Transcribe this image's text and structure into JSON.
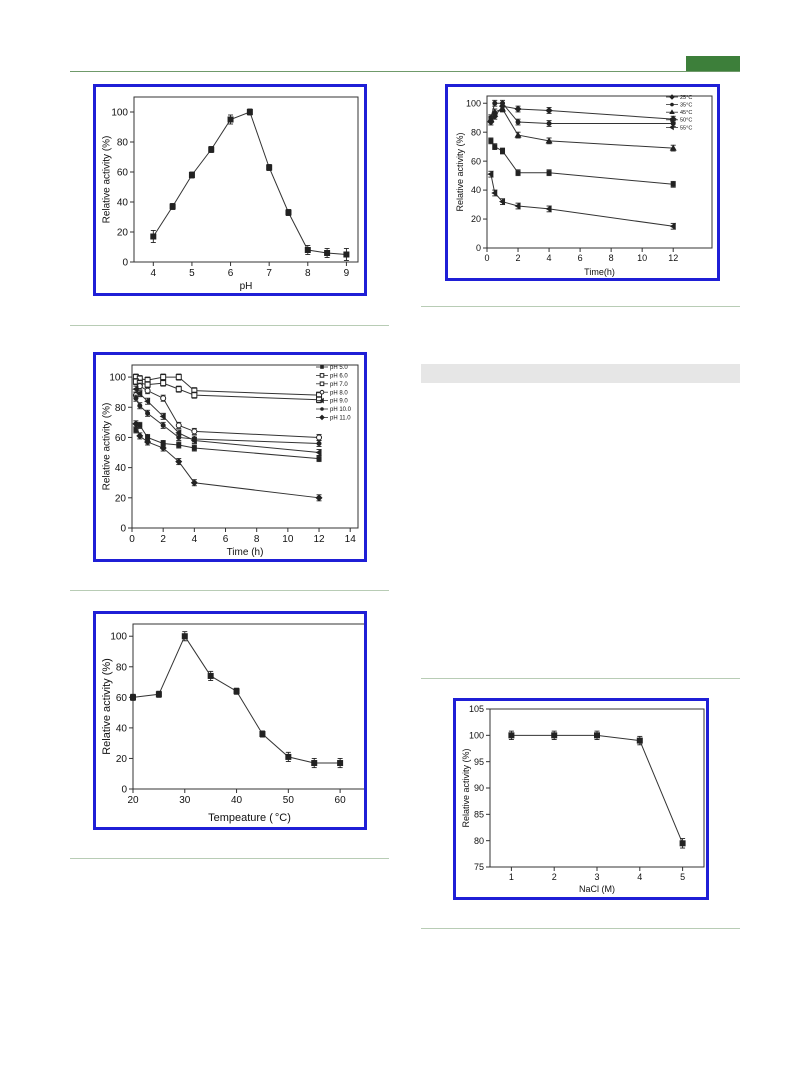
{
  "page": {
    "accent_color": "#3d7f3a",
    "panel_border_color": "#1f1fd6",
    "rule_color": "#b8ccb5"
  },
  "chart_data": [
    {
      "id": "ph_activity",
      "type": "line",
      "xlabel": "pH",
      "ylabel": "Relative activity (%)",
      "xlim": [
        3.5,
        9.3
      ],
      "ylim": [
        0,
        110
      ],
      "xticks": [
        4,
        5,
        6,
        7,
        8,
        9
      ],
      "yticks": [
        0,
        20,
        40,
        60,
        80,
        100
      ],
      "grid": false,
      "series": [
        {
          "marker": "square",
          "x": [
            4.0,
            4.5,
            5.0,
            5.5,
            6.0,
            6.5,
            7.0,
            7.5,
            8.0,
            8.5,
            9.0
          ],
          "y": [
            17,
            37,
            58,
            75,
            95,
            100,
            63,
            33,
            8,
            6,
            5
          ],
          "err": [
            4,
            2,
            2,
            2,
            3,
            2,
            2,
            2,
            3,
            3,
            4
          ]
        }
      ]
    },
    {
      "id": "ph_stability",
      "type": "line",
      "xlabel": "Time (h)",
      "ylabel": "Relative activity (%)",
      "xlim": [
        0,
        14.5
      ],
      "ylim": [
        0,
        108
      ],
      "xticks": [
        0,
        2,
        4,
        6,
        8,
        10,
        12,
        14
      ],
      "yticks": [
        0,
        20,
        40,
        60,
        80,
        100
      ],
      "grid": false,
      "legend_position": "top-right",
      "series": [
        {
          "name": "pH 5.0",
          "marker": "square",
          "x": [
            0.25,
            0.5,
            1,
            2,
            3,
            4,
            12
          ],
          "y": [
            65,
            68,
            60,
            56,
            55,
            53,
            46
          ],
          "err": [
            2,
            2,
            2,
            2,
            2,
            2,
            2
          ]
        },
        {
          "name": "pH 6.0",
          "marker": "open-square",
          "x": [
            0.25,
            0.5,
            1,
            2,
            3,
            4,
            12
          ],
          "y": [
            100,
            99,
            98,
            100,
            100,
            91,
            88
          ],
          "err": [
            2,
            2,
            2,
            2,
            2,
            2,
            2
          ]
        },
        {
          "name": "pH 7.0",
          "marker": "open-square",
          "x": [
            0.25,
            0.5,
            1,
            2,
            3,
            4,
            12
          ],
          "y": [
            97,
            96,
            95,
            96,
            92,
            88,
            85
          ],
          "err": [
            2,
            2,
            2,
            2,
            2,
            2,
            2
          ]
        },
        {
          "name": "pH 8.0",
          "marker": "open-circle",
          "x": [
            0.25,
            0.5,
            1,
            2,
            3,
            4,
            12
          ],
          "y": [
            88,
            94,
            91,
            86,
            68,
            64,
            60
          ],
          "err": [
            2,
            2,
            2,
            2,
            2,
            2,
            2
          ]
        },
        {
          "name": "pH 9.0",
          "marker": "triangle-left",
          "x": [
            0.25,
            0.5,
            1,
            2,
            3,
            4,
            12
          ],
          "y": [
            92,
            89,
            84,
            74,
            63,
            58,
            50
          ],
          "err": [
            2,
            2,
            2,
            2,
            2,
            2,
            2
          ]
        },
        {
          "name": "pH 10.0",
          "marker": "circle",
          "x": [
            0.25,
            0.5,
            1,
            2,
            3,
            4,
            12
          ],
          "y": [
            86,
            81,
            76,
            68,
            60,
            59,
            56
          ],
          "err": [
            2,
            2,
            2,
            2,
            2,
            2,
            2
          ]
        },
        {
          "name": "pH 11.0",
          "marker": "diamond",
          "x": [
            0.25,
            0.5,
            1,
            2,
            3,
            4,
            12
          ],
          "y": [
            69,
            61,
            57,
            53,
            44,
            30,
            20
          ],
          "err": [
            2,
            2,
            2,
            2,
            2,
            2,
            2
          ]
        }
      ]
    },
    {
      "id": "temperature_activity",
      "type": "line",
      "xlabel": "Tempeature (",
      "xlabel_unit": "°C",
      "xlabel_close": ")",
      "ylabel": "Relative activity (%)",
      "xlim": [
        20,
        65
      ],
      "ylim": [
        0,
        108
      ],
      "xticks": [
        20,
        30,
        40,
        50,
        60
      ],
      "yticks": [
        0,
        20,
        40,
        60,
        80,
        100
      ],
      "grid": false,
      "series": [
        {
          "marker": "square",
          "x": [
            20,
            25,
            30,
            35,
            40,
            45,
            50,
            55,
            60
          ],
          "y": [
            60,
            62,
            100,
            74,
            64,
            36,
            21,
            17,
            17
          ],
          "err": [
            2,
            2,
            3,
            3,
            2,
            2,
            3,
            3,
            3
          ]
        }
      ]
    },
    {
      "id": "temperature_stability",
      "type": "line",
      "xlabel": "Time(h)",
      "ylabel": "Relative activity (%)",
      "xlim": [
        0,
        14.5
      ],
      "ylim": [
        0,
        105
      ],
      "xticks": [
        0,
        2,
        4,
        6,
        8,
        10,
        12
      ],
      "yticks": [
        0,
        20,
        40,
        60,
        80,
        100
      ],
      "grid": false,
      "legend_position": "top-right",
      "series": [
        {
          "name": "25°C",
          "marker": "diamond",
          "x": [
            0.25,
            0.5,
            1,
            2,
            4,
            12
          ],
          "y": [
            87,
            91,
            98,
            96,
            95,
            89
          ],
          "err": [
            2,
            2,
            2,
            2,
            2,
            2
          ]
        },
        {
          "name": "35°C",
          "marker": "circle",
          "x": [
            0.25,
            0.5,
            1,
            2,
            4,
            12
          ],
          "y": [
            90,
            100,
            100,
            87,
            86,
            86
          ],
          "err": [
            2,
            2,
            2,
            2,
            2,
            2
          ]
        },
        {
          "name": "45°C",
          "marker": "triangle-up",
          "x": [
            0.25,
            0.5,
            1,
            2,
            4,
            12
          ],
          "y": [
            89,
            94,
            96,
            78,
            74,
            69
          ],
          "err": [
            2,
            2,
            2,
            2,
            2,
            2
          ]
        },
        {
          "name": "50°C",
          "marker": "square",
          "x": [
            0.25,
            0.5,
            1,
            2,
            4,
            12
          ],
          "y": [
            74,
            70,
            67,
            52,
            52,
            44
          ],
          "err": [
            2,
            2,
            2,
            2,
            2,
            2
          ]
        },
        {
          "name": "55°C",
          "marker": "triangle-left",
          "x": [
            0.25,
            0.5,
            1,
            2,
            4,
            12
          ],
          "y": [
            51,
            38,
            32,
            29,
            27,
            15
          ],
          "err": [
            2,
            2,
            2,
            2,
            2,
            2
          ]
        }
      ]
    },
    {
      "id": "nacl_activity",
      "type": "line",
      "xlabel": "NaCl (M)",
      "ylabel": "Relative activity (%)",
      "xlim": [
        0.5,
        5.5
      ],
      "ylim": [
        75,
        105
      ],
      "xticks": [
        1,
        2,
        3,
        4,
        5
      ],
      "yticks": [
        75,
        80,
        85,
        90,
        95,
        100,
        105
      ],
      "grid": false,
      "series": [
        {
          "marker": "square",
          "x": [
            1,
            2,
            3,
            4,
            5
          ],
          "y": [
            100,
            100,
            100,
            99,
            79.5
          ],
          "err": [
            0.8,
            0.8,
            0.8,
            0.8,
            0.9
          ]
        }
      ]
    }
  ]
}
